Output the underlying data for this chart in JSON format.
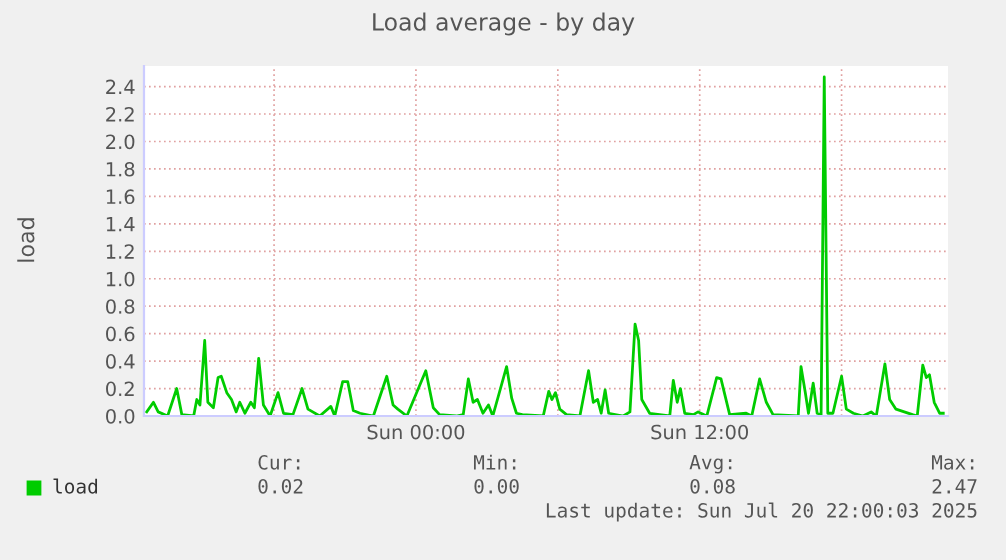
{
  "chart_data": {
    "type": "line",
    "title": "Load average - by day",
    "ylabel": "load",
    "series": [
      {
        "name": "load",
        "color": "#00cc00",
        "x": [
          "2025-07-19T12:37",
          "2025-07-19T12:54",
          "2025-07-19T13:06",
          "2025-07-19T13:30",
          "2025-07-19T13:53",
          "2025-07-19T14:06",
          "2025-07-19T14:36",
          "2025-07-19T14:44",
          "2025-07-19T14:52",
          "2025-07-19T15:04",
          "2025-07-19T15:12",
          "2025-07-19T15:26",
          "2025-07-19T15:38",
          "2025-07-19T15:46",
          "2025-07-19T16:00",
          "2025-07-19T16:12",
          "2025-07-19T16:24",
          "2025-07-19T16:33",
          "2025-07-19T16:46",
          "2025-07-19T17:01",
          "2025-07-19T17:10",
          "2025-07-19T17:21",
          "2025-07-19T17:33",
          "2025-07-19T17:50",
          "2025-07-19T18:10",
          "2025-07-19T18:24",
          "2025-07-19T18:48",
          "2025-07-19T19:11",
          "2025-07-19T19:26",
          "2025-07-19T19:56",
          "2025-07-19T20:24",
          "2025-07-19T20:34",
          "2025-07-19T20:54",
          "2025-07-19T21:07",
          "2025-07-19T21:21",
          "2025-07-19T21:38",
          "2025-07-19T22:12",
          "2025-07-19T22:46",
          "2025-07-19T23:02",
          "2025-07-19T23:14",
          "2025-07-19T23:37",
          "2025-07-20T00:25",
          "2025-07-20T00:44",
          "2025-07-20T01:00",
          "2025-07-20T01:42",
          "2025-07-20T02:00",
          "2025-07-20T02:13",
          "2025-07-20T02:25",
          "2025-07-20T02:36",
          "2025-07-20T02:50",
          "2025-07-20T03:04",
          "2025-07-20T03:15",
          "2025-07-20T03:50",
          "2025-07-20T04:03",
          "2025-07-20T04:15",
          "2025-07-20T04:30",
          "2025-07-20T05:23",
          "2025-07-20T05:37",
          "2025-07-20T05:45",
          "2025-07-20T05:54",
          "2025-07-20T06:05",
          "2025-07-20T06:22",
          "2025-07-20T06:56",
          "2025-07-20T07:18",
          "2025-07-20T07:30",
          "2025-07-20T07:41",
          "2025-07-20T07:50",
          "2025-07-20T08:00",
          "2025-07-20T08:09",
          "2025-07-20T08:46",
          "2025-07-20T09:03",
          "2025-07-20T09:16",
          "2025-07-20T09:25",
          "2025-07-20T09:33",
          "2025-07-20T09:53",
          "2025-07-20T10:44",
          "2025-07-20T10:53",
          "2025-07-20T11:03",
          "2025-07-20T11:11",
          "2025-07-20T11:22",
          "2025-07-20T11:44",
          "2025-07-20T11:56",
          "2025-07-20T12:18",
          "2025-07-20T12:43",
          "2025-07-20T12:54",
          "2025-07-20T13:16",
          "2025-07-20T13:58",
          "2025-07-20T14:12",
          "2025-07-20T14:32",
          "2025-07-20T14:49",
          "2025-07-20T15:06",
          "2025-07-20T16:10",
          "2025-07-20T16:17",
          "2025-07-20T16:28",
          "2025-07-20T16:36",
          "2025-07-20T16:48",
          "2025-07-20T16:58",
          "2025-07-20T17:08",
          "2025-07-20T17:16",
          "2025-07-20T17:25",
          "2025-07-20T17:38",
          "2025-07-20T18:00",
          "2025-07-20T18:12",
          "2025-07-20T18:30",
          "2025-07-20T18:54",
          "2025-07-20T19:15",
          "2025-07-20T19:28",
          "2025-07-20T19:50",
          "2025-07-20T20:02",
          "2025-07-20T20:18",
          "2025-07-20T21:00",
          "2025-07-20T21:12",
          "2025-07-20T21:26",
          "2025-07-20T21:35",
          "2025-07-20T21:43",
          "2025-07-20T21:55",
          "2025-07-20T22:09",
          "2025-07-20T22:18"
        ],
        "values": [
          0.03,
          0.1,
          0.03,
          0.0,
          0.2,
          0.01,
          0.0,
          0.12,
          0.08,
          0.55,
          0.1,
          0.06,
          0.28,
          0.29,
          0.17,
          0.12,
          0.03,
          0.1,
          0.02,
          0.1,
          0.06,
          0.42,
          0.08,
          0.0,
          0.17,
          0.02,
          0.01,
          0.2,
          0.05,
          0.0,
          0.07,
          0.0,
          0.25,
          0.25,
          0.04,
          0.02,
          0.0,
          0.29,
          0.08,
          0.05,
          0.0,
          0.33,
          0.06,
          0.01,
          0.0,
          0.01,
          0.27,
          0.1,
          0.12,
          0.02,
          0.08,
          0.0,
          0.36,
          0.13,
          0.02,
          0.01,
          0.0,
          0.18,
          0.12,
          0.17,
          0.05,
          0.01,
          0.0,
          0.33,
          0.1,
          0.12,
          0.02,
          0.19,
          0.02,
          0.0,
          0.03,
          0.67,
          0.55,
          0.12,
          0.02,
          0.0,
          0.26,
          0.1,
          0.2,
          0.02,
          0.01,
          0.03,
          0.0,
          0.28,
          0.27,
          0.01,
          0.02,
          0.0,
          0.27,
          0.1,
          0.01,
          0.0,
          0.36,
          0.17,
          0.02,
          0.24,
          0.02,
          0.01,
          2.47,
          0.02,
          0.02,
          0.29,
          0.05,
          0.02,
          0.0,
          0.03,
          0.0,
          0.38,
          0.12,
          0.05,
          0.01,
          0.0,
          0.37,
          0.28,
          0.3,
          0.1,
          0.02,
          0.02
        ]
      }
    ],
    "xlim": [
      "2025-07-19T12:30",
      "2025-07-20T22:30"
    ],
    "xticks": [
      {
        "value": "2025-07-19T18:00",
        "label": null
      },
      {
        "value": "2025-07-20T00:00",
        "label": "Sun 00:00"
      },
      {
        "value": "2025-07-20T06:00",
        "label": null
      },
      {
        "value": "2025-07-20T12:00",
        "label": "Sun 12:00"
      },
      {
        "value": "2025-07-20T18:00",
        "label": null
      }
    ],
    "ylim": [
      0,
      2.55
    ],
    "yticks": [
      {
        "value": 0,
        "label": "0.0"
      },
      {
        "value": 0.2,
        "label": "0.2"
      },
      {
        "value": 0.4,
        "label": "0.4"
      },
      {
        "value": 0.6,
        "label": "0.6"
      },
      {
        "value": 0.8,
        "label": "0.8"
      },
      {
        "value": 1.0,
        "label": "1.0"
      },
      {
        "value": 1.2,
        "label": "1.2"
      },
      {
        "value": 1.4,
        "label": "1.4"
      },
      {
        "value": 1.6,
        "label": "1.6"
      },
      {
        "value": 1.8,
        "label": "1.8"
      },
      {
        "value": 2.0,
        "label": "2.0"
      },
      {
        "value": 2.2,
        "label": "2.2"
      },
      {
        "value": 2.4,
        "label": "2.4"
      }
    ],
    "grid": true,
    "legend": "bottom",
    "annotations": [
      "Cur:",
      "0.02",
      "Min:",
      "0.00",
      "Avg:",
      "0.08",
      "Max:",
      "2.47",
      "Last update: Sun Jul 20 22:00:03 2025"
    ]
  }
}
